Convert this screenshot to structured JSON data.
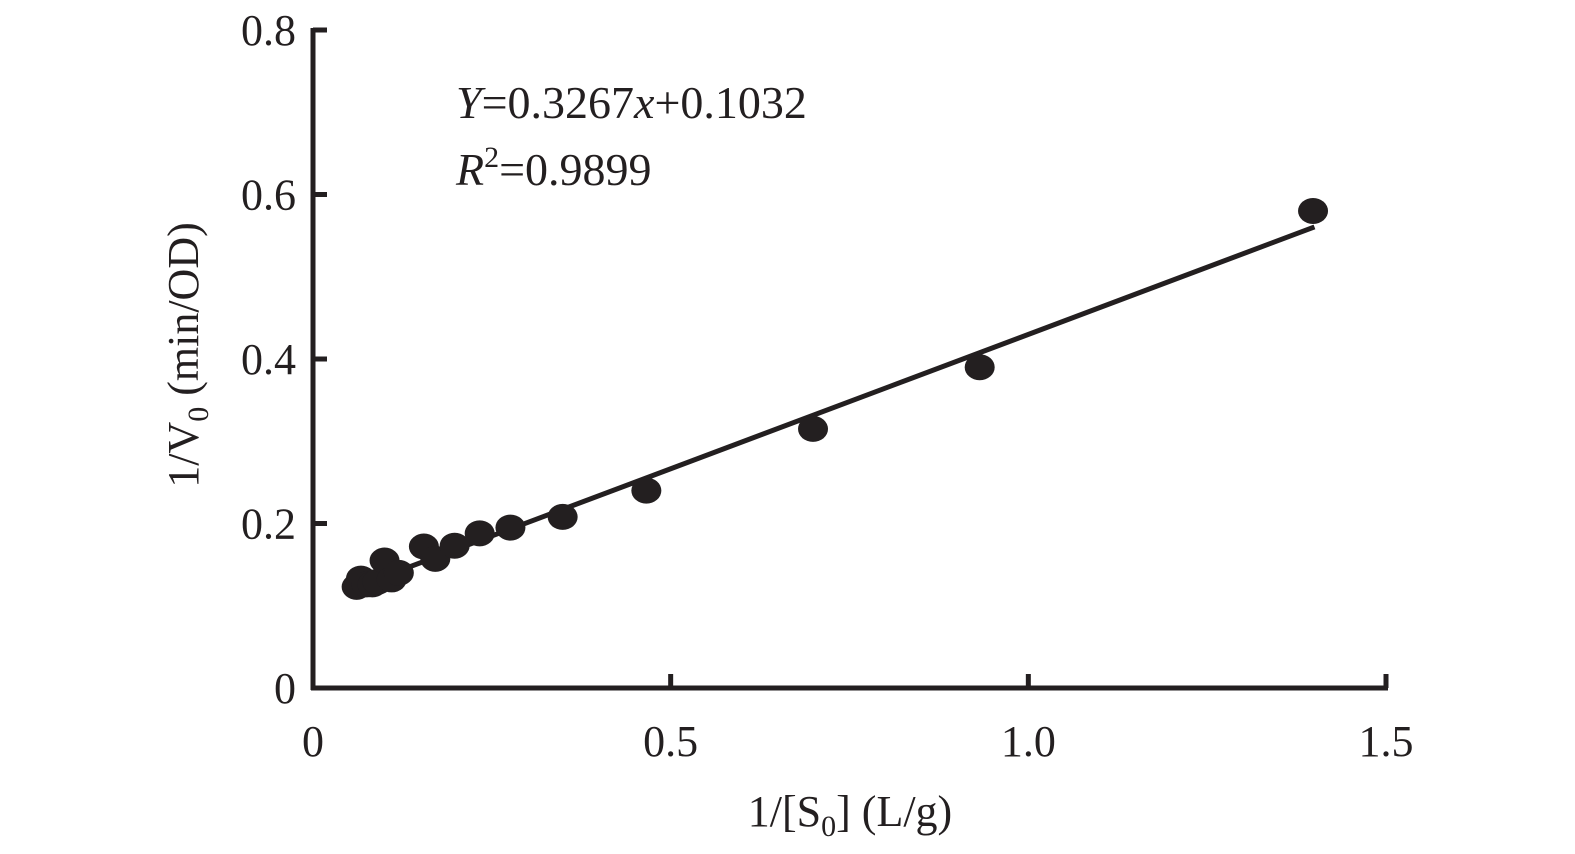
{
  "chart_data": {
    "type": "scatter",
    "xlim": [
      0,
      1.5
    ],
    "ylim": [
      0,
      0.8
    ],
    "x_ticks": [
      {
        "value": 0,
        "label": "0"
      },
      {
        "value": 0.5,
        "label": "0.5"
      },
      {
        "value": 1.0,
        "label": "1.0"
      },
      {
        "value": 1.5,
        "label": "1.5"
      }
    ],
    "y_ticks": [
      {
        "value": 0,
        "label": "0"
      },
      {
        "value": 0.2,
        "label": "0.2"
      },
      {
        "value": 0.4,
        "label": "0.4"
      },
      {
        "value": 0.6,
        "label": "0.6"
      },
      {
        "value": 0.8,
        "label": "0.8"
      }
    ],
    "xlabel": {
      "pre": "1/[S",
      "sub": "0",
      "post": "] (L/g)"
    },
    "ylabel": {
      "pre": "1/V",
      "sub": "0",
      "post": " (min/OD)"
    },
    "grid": false,
    "points": [
      {
        "x": 0.061,
        "y": 0.123
      },
      {
        "x": 0.067,
        "y": 0.133
      },
      {
        "x": 0.075,
        "y": 0.126
      },
      {
        "x": 0.083,
        "y": 0.126
      },
      {
        "x": 0.09,
        "y": 0.129
      },
      {
        "x": 0.1,
        "y": 0.155
      },
      {
        "x": 0.11,
        "y": 0.132
      },
      {
        "x": 0.12,
        "y": 0.14
      },
      {
        "x": 0.155,
        "y": 0.172
      },
      {
        "x": 0.171,
        "y": 0.157
      },
      {
        "x": 0.198,
        "y": 0.173
      },
      {
        "x": 0.233,
        "y": 0.188
      },
      {
        "x": 0.276,
        "y": 0.195
      },
      {
        "x": 0.349,
        "y": 0.208
      },
      {
        "x": 0.466,
        "y": 0.24
      },
      {
        "x": 0.699,
        "y": 0.315
      },
      {
        "x": 0.932,
        "y": 0.39
      },
      {
        "x": 1.398,
        "y": 0.58
      }
    ],
    "fit": {
      "slope": 0.3267,
      "intercept": 0.1032,
      "x_range": [
        0.06,
        1.4
      ],
      "equation": {
        "y_var": "Y",
        "text": "=0.3267",
        "x_var": "x",
        "tail": "+0.1032"
      },
      "r_squared": {
        "var": "R",
        "sup": "2",
        "text": "=0.9899"
      }
    }
  }
}
